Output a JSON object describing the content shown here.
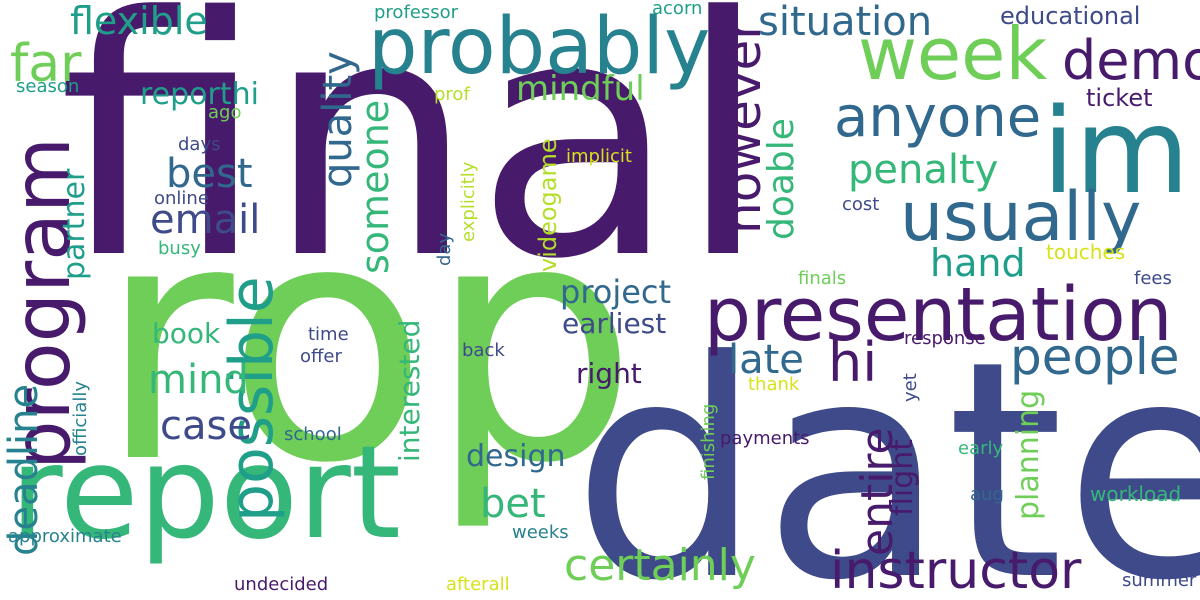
{
  "cloud": {
    "background": "#ffffff",
    "palette": {
      "dark_purple": "#481a6c",
      "indigo": "#3e4a89",
      "slate_blue": "#31688e",
      "teal": "#26828e",
      "sea_green": "#1f9e89",
      "green": "#35b779",
      "light_green": "#6ece58",
      "lime": "#b5de2b",
      "yellow": "#d8e219"
    },
    "words": {
      "final": "final",
      "rop": "rop",
      "date": "date",
      "report": "report",
      "presentation": "presentation",
      "im": "im",
      "probably": "probably",
      "program": "program",
      "possible": "possible",
      "week": "week",
      "usually": "usually",
      "anyone": "anyone",
      "instructor": "instructor",
      "people": "people",
      "however": "however",
      "demo": "demo",
      "deadline": "deadline",
      "hi": "hi",
      "certainly": "certainly",
      "entire": "entire",
      "far": "far",
      "flexible": "flexible",
      "situation": "situation",
      "someone": "someone",
      "quality": "quality",
      "best": "best",
      "email": "email",
      "penalty": "penalty",
      "mind": "mind",
      "case": "case",
      "bet": "bet",
      "hand": "hand",
      "late": "late",
      "project": "project",
      "doable": "doable",
      "planning": "planning",
      "design": "design",
      "earliest": "earliest",
      "mindful": "mindful",
      "partner": "partner",
      "interested": "interested",
      "reporthi": "reporthi",
      "flight": "flight",
      "book": "book",
      "right": "right",
      "videogame": "videogame",
      "educational": "educational",
      "ticket": "ticket",
      "workload": "workload",
      "professor": "professor",
      "acorn": "acorn",
      "season": "season",
      "ago": "ago",
      "prof": "prof",
      "days": "days",
      "online": "online",
      "busy": "busy",
      "implicit": "implicit",
      "explicitly": "explicitly",
      "cost": "cost",
      "day": "day",
      "touches": "touches",
      "fees": "fees",
      "finals": "finals",
      "time": "time",
      "offer": "offer",
      "back": "back",
      "response": "response",
      "officially": "officially",
      "thank": "thank",
      "yet": "yet",
      "school": "school",
      "finishing": "finishing",
      "payments": "payments",
      "early": "early",
      "aug": "aug",
      "approximate": "approximate",
      "weeks": "weeks",
      "undecided": "undecided",
      "afterall": "afterall",
      "summer": "summer"
    }
  }
}
